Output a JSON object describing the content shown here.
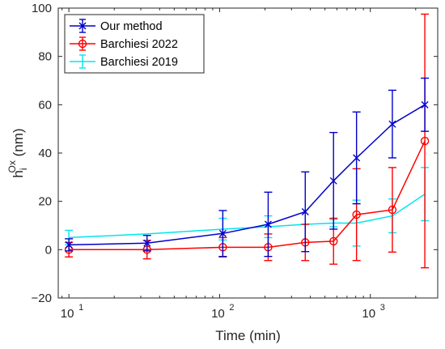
{
  "chart_data": {
    "type": "line",
    "xlabel": "Time (min)",
    "ylabel": {
      "base": "h",
      "sub": "i",
      "sup": "Ox",
      "unit": " (nm)"
    },
    "x_scale": "log",
    "xlim": [
      8.5,
      2800
    ],
    "ylim": [
      -20,
      100
    ],
    "yticks": [
      -20,
      0,
      20,
      40,
      60,
      80,
      100
    ],
    "xticks": [
      {
        "value": 10,
        "base": "10",
        "exp": "1"
      },
      {
        "value": 100,
        "base": "10",
        "exp": "2"
      },
      {
        "value": 1000,
        "base": "10",
        "exp": "3"
      }
    ],
    "legend_position": "top-left",
    "series": [
      {
        "name": "Our method",
        "color": "#0000cc",
        "marker": "x",
        "points": [
          {
            "x": 10,
            "y": 2,
            "err": 2.5
          },
          {
            "x": 33,
            "y": 2.7,
            "err": 3.2
          },
          {
            "x": 105,
            "y": 6.7,
            "err": 9.5
          },
          {
            "x": 210,
            "y": 10.5,
            "err": 13.3
          },
          {
            "x": 370,
            "y": 15.7,
            "err": 16.5
          },
          {
            "x": 570,
            "y": 28.5,
            "err": 20
          },
          {
            "x": 810,
            "y": 38,
            "err": 19
          },
          {
            "x": 1400,
            "y": 52,
            "err": 14
          },
          {
            "x": 2300,
            "y": 60,
            "err": 11
          }
        ]
      },
      {
        "name": "Barchiesi 2022",
        "color": "#ff0000",
        "marker": "o",
        "points": [
          {
            "x": 10,
            "y": 0,
            "err": 3
          },
          {
            "x": 33,
            "y": 0,
            "err": 3.8
          },
          {
            "x": 105,
            "y": 1,
            "err": 4
          },
          {
            "x": 210,
            "y": 1,
            "err": 5.5
          },
          {
            "x": 370,
            "y": 3,
            "err": 7.5
          },
          {
            "x": 570,
            "y": 3.5,
            "err": 9.5
          },
          {
            "x": 810,
            "y": 14.5,
            "err": 19
          },
          {
            "x": 1400,
            "y": 16.5,
            "err": 17.5
          },
          {
            "x": 2300,
            "y": 45,
            "err": 52.5
          }
        ]
      },
      {
        "name": "Barchiesi 2019",
        "color": "#00e5ee",
        "marker": "none",
        "points": [
          {
            "x": 10,
            "y": 5,
            "err": 3
          },
          {
            "x": 33,
            "y": 6.5,
            "err": 0
          },
          {
            "x": 105,
            "y": 8.5,
            "err": 4.5
          },
          {
            "x": 210,
            "y": 9.5,
            "err": 4.5
          },
          {
            "x": 370,
            "y": 10.5,
            "err": 0
          },
          {
            "x": 570,
            "y": 11,
            "err": 1.5
          },
          {
            "x": 810,
            "y": 11,
            "err": 9.5
          },
          {
            "x": 1400,
            "y": 14,
            "err": 7
          },
          {
            "x": 2300,
            "y": 23,
            "err": 11
          }
        ]
      }
    ]
  }
}
